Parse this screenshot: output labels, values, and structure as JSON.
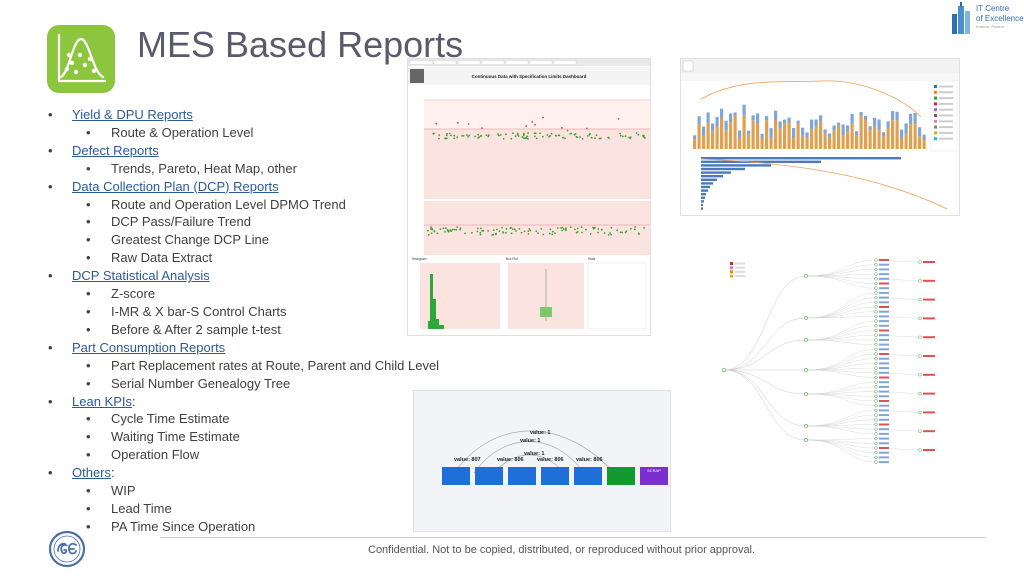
{
  "slide": {
    "title": "MES Based Reports",
    "brand": {
      "line1": "IT Centre",
      "line2": "of Excellence",
      "line3": "Krakow, Poland"
    },
    "footer": "Confidential. Not to be copied, distributed, or reproduced without prior approval."
  },
  "outline": [
    {
      "label": "Yield & DPU Reports",
      "suffix": "",
      "children": [
        "Route & Operation Level"
      ]
    },
    {
      "label": "Defect Reports",
      "suffix": "",
      "children": [
        "Trends, Pareto, Heat Map, other"
      ]
    },
    {
      "label": "Data Collection Plan (DCP) Reports",
      "suffix": "",
      "children": [
        "Route and Operation Level DPMO Trend",
        "DCP Pass/Failure Trend",
        "Greatest Change DCP Line",
        "Raw Data Extract"
      ]
    },
    {
      "label": "DCP Statistical Analysis",
      "suffix": "",
      "children": [
        "Z-score",
        "I-MR & X bar-S Control Charts",
        "Before & After 2 sample t-test"
      ]
    },
    {
      "label": "Part Consumption Reports",
      "suffix": "",
      "children": [
        "Part Replacement rates at Route, Parent and Child Level",
        "Serial Number Genealogy Tree"
      ]
    },
    {
      "label": "Lean KPIs",
      "suffix": ":",
      "children": [
        "Cycle Time Estimate",
        "Waiting Time Estimate",
        "Operation Flow"
      ]
    },
    {
      "label": "Others",
      "suffix": ":",
      "children": [
        "WIP",
        "Lead Time",
        "PA Time Since Operation"
      ]
    }
  ],
  "screenshots": {
    "control_chart": {
      "header": "Continuous Data with Specification Limits Dashboard",
      "panels": [
        "Histogram",
        "Box Plot",
        "Stats"
      ]
    },
    "flow": {
      "labels": [
        "value: 1",
        "value: 1",
        "value: 1",
        "value: 807",
        "value: 806",
        "value: 806",
        "value: 806"
      ],
      "nodes": [
        "",
        "",
        "",
        "",
        "",
        "",
        "SCRAP"
      ],
      "node_colors": [
        "#1e6fd8",
        "#1e6fd8",
        "#1e6fd8",
        "#1e6fd8",
        "#1e6fd8",
        "#139a2e",
        "#7b2fcf"
      ]
    }
  },
  "colors": {
    "accent_green": "#8cc63f",
    "link_blue": "#2b5a9a",
    "brand_blue": "#2d6fb3"
  }
}
